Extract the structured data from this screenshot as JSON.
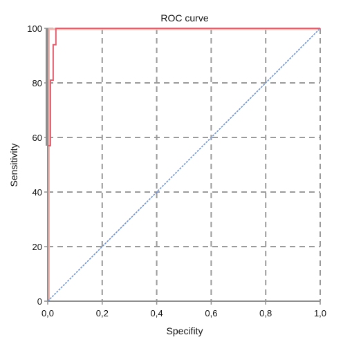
{
  "chart_data": {
    "type": "line",
    "title": "ROC curve",
    "xlabel": "Specifity",
    "ylabel": "Sensitivity",
    "xlim": [
      0.0,
      1.0
    ],
    "ylim": [
      0,
      100
    ],
    "x_tick_labels": [
      "0,0",
      "0,2",
      "0,4",
      "0,6",
      "0,8",
      "1,0"
    ],
    "x_tick_values": [
      0.0,
      0.2,
      0.4,
      0.6,
      0.8,
      1.0
    ],
    "y_tick_labels": [
      "0",
      "20",
      "40",
      "60",
      "80",
      "100"
    ],
    "y_tick_values": [
      0,
      20,
      40,
      60,
      80,
      100
    ],
    "grid": true,
    "series": [
      {
        "role": "roc",
        "color": "#e06070",
        "points": [
          [
            0.0,
            0
          ],
          [
            0.0,
            57
          ],
          [
            0.01,
            57
          ],
          [
            0.01,
            81
          ],
          [
            0.02,
            81
          ],
          [
            0.02,
            94
          ],
          [
            0.03,
            94
          ],
          [
            0.03,
            100
          ],
          [
            1.0,
            100
          ]
        ]
      },
      {
        "role": "reference",
        "color": "#6f94d6",
        "points": [
          [
            0.0,
            0
          ],
          [
            1.0,
            100
          ]
        ]
      }
    ],
    "band_color": "#f2b7b0",
    "axis_color": "#8f8f8f",
    "grid_color": "#9a9a9a"
  }
}
